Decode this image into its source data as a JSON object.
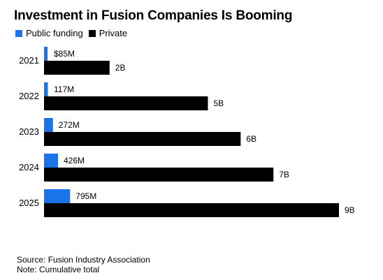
{
  "chart_data": {
    "type": "bar",
    "orientation": "horizontal",
    "title": "Investment in Fusion Companies Is Booming",
    "categories": [
      "2021",
      "2022",
      "2023",
      "2024",
      "2025"
    ],
    "series": [
      {
        "name": "Public funding",
        "color": "#1a73e8",
        "values": [
          0.085,
          0.117,
          0.272,
          0.426,
          0.795
        ],
        "labels": [
          "$85M",
          "117M",
          "272M",
          "426M",
          "795M"
        ]
      },
      {
        "name": "Private",
        "color": "#000000",
        "values": [
          2,
          5,
          6,
          7,
          9
        ],
        "labels": [
          "2B",
          "5B",
          "6B",
          "7B",
          "9B"
        ]
      }
    ],
    "unit": "billions USD",
    "xlim": [
      0,
      9
    ],
    "legend_position": "top-left",
    "grid": false
  },
  "footer": {
    "source": "Source: Fusion Industry Association",
    "note": "Note: Cumulative total"
  }
}
